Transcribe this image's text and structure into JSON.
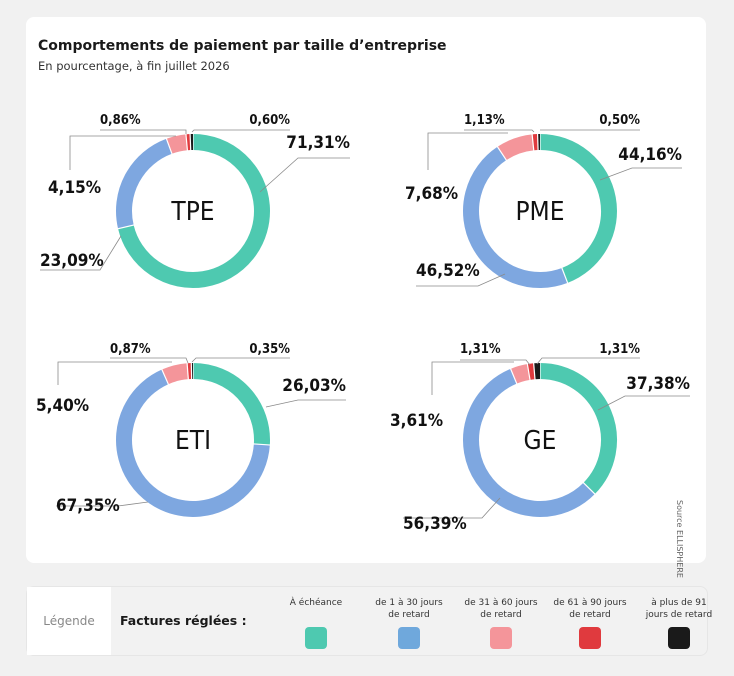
{
  "header": {
    "title": "Comportements de paiement par taille d’entreprise",
    "subtitle": "En pourcentage, à fin juillet 2026"
  },
  "source": "Source ELLISPHERE",
  "colors": {
    "a_echeance": "#4ec9b0",
    "1_30": "#7ea7e0",
    "31_60": "#f4959a",
    "61_90": "#e03a3e",
    "91_plus": "#1a1a1a"
  },
  "chart_data": [
    {
      "type": "pie",
      "center_label": "TPE",
      "series": [
        {
          "name": "À échéance",
          "value": 71.31,
          "label": "71,31%"
        },
        {
          "name": "de 1 à 30 jours de retard",
          "value": 23.09,
          "label": "23,09%"
        },
        {
          "name": "de 31 à 60 jours de retard",
          "value": 4.15,
          "label": "4,15%"
        },
        {
          "name": "de 61 à 90 jours de retard",
          "value": 0.86,
          "label": "0,86%"
        },
        {
          "name": "à plus de 91 jours de retard",
          "value": 0.6,
          "label": "0,60%"
        }
      ]
    },
    {
      "type": "pie",
      "center_label": "PME",
      "series": [
        {
          "name": "À échéance",
          "value": 44.16,
          "label": "44,16%"
        },
        {
          "name": "de 1 à 30 jours de retard",
          "value": 46.52,
          "label": "46,52%"
        },
        {
          "name": "de 31 à 60 jours de retard",
          "value": 7.68,
          "label": "7,68%"
        },
        {
          "name": "de 61 à 90 jours de retard",
          "value": 1.13,
          "label": "1,13%"
        },
        {
          "name": "à plus de 91 jours de retard",
          "value": 0.5,
          "label": "0,50%"
        }
      ]
    },
    {
      "type": "pie",
      "center_label": "ETI",
      "series": [
        {
          "name": "À échéance",
          "value": 26.03,
          "label": "26,03%"
        },
        {
          "name": "de 1 à 30 jours de retard",
          "value": 67.35,
          "label": "67,35%"
        },
        {
          "name": "de 31 à 60 jours de retard",
          "value": 5.4,
          "label": "5,40%"
        },
        {
          "name": "de 61 à 90 jours de retard",
          "value": 0.87,
          "label": "0,87%"
        },
        {
          "name": "à plus de 91 jours de retard",
          "value": 0.35,
          "label": "0,35%"
        }
      ]
    },
    {
      "type": "pie",
      "center_label": "GE",
      "series": [
        {
          "name": "À échéance",
          "value": 37.38,
          "label": "37,38%"
        },
        {
          "name": "de 1 à 30 jours de retard",
          "value": 56.39,
          "label": "56,39%"
        },
        {
          "name": "de 31 à 60 jours de retard",
          "value": 3.61,
          "label": "3,61%"
        },
        {
          "name": "de 61 à 90 jours de retard",
          "value": 1.31,
          "label": "1,31%"
        },
        {
          "name": "à plus de 91 jours de retard",
          "value": 1.31,
          "label": "1,31%"
        }
      ]
    }
  ],
  "legend": {
    "box_label": "Légende",
    "title": "Factures réglées :",
    "items": [
      {
        "label": "À échéance",
        "color": "#4ec9b0"
      },
      {
        "label": "de 1 à 30 jours\nde retard",
        "color": "#6fa8dc"
      },
      {
        "label": "de 31 à 60 jours\nde retard",
        "color": "#f4959a"
      },
      {
        "label": "de 61 à 90 jours\nde retard",
        "color": "#e03a3e"
      },
      {
        "label": "à plus de 91\njours de retard",
        "color": "#1a1a1a"
      }
    ]
  }
}
